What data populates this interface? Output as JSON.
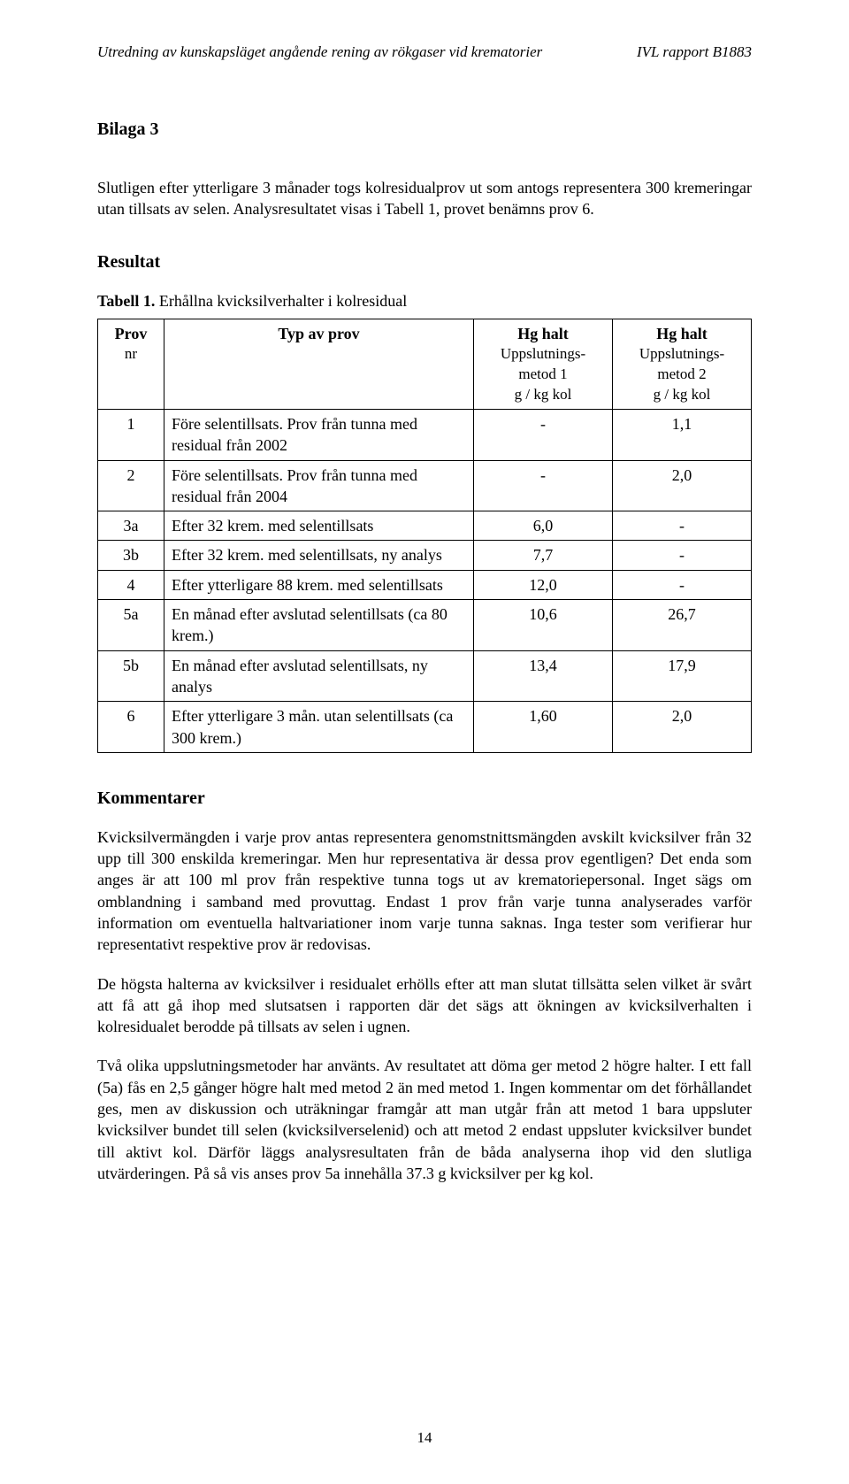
{
  "header": {
    "left": "Utredning av kunskapsläget angående rening av rökgaser vid krematorier",
    "right": "IVL rapport B1883"
  },
  "bilaga": "Bilaga 3",
  "intro": "Slutligen efter ytterligare 3 månader togs kolresidualprov ut som antogs representera 300 kremeringar utan tillsats av selen. Analysresultatet visas i Tabell 1, provet benämns prov 6.",
  "resultat_heading": "Resultat",
  "table_caption_bold": "Tabell 1.",
  "table_caption_rest": " Erhållna kvicksilverhalter i kolresidual",
  "table": {
    "col0": {
      "l1": "Prov",
      "l2": "nr"
    },
    "col1": {
      "l1": "Typ av prov"
    },
    "col2": {
      "l1": "Hg halt",
      "l2": "Uppslutnings-\nmetod 1",
      "l3": "g / kg kol"
    },
    "col3": {
      "l1": "Hg halt",
      "l2": "Uppslutnings-\nmetod 2",
      "l3": "g / kg kol"
    },
    "rows": [
      {
        "nr": "1",
        "typ": "Före selentillsats. Prov från tunna med residual från  2002",
        "v1": "-",
        "v2": "1,1"
      },
      {
        "nr": "2",
        "typ": "Före selentillsats. Prov från tunna med residual från  2004",
        "v1": "-",
        "v2": "2,0"
      },
      {
        "nr": "3a",
        "typ": "Efter 32 krem. med selentillsats",
        "v1": "6,0",
        "v2": "-"
      },
      {
        "nr": "3b",
        "typ": "Efter 32 krem. med selentillsats, ny analys",
        "v1": "7,7",
        "v2": "-"
      },
      {
        "nr": "4",
        "typ": "Efter ytterligare 88 krem. med selentillsats",
        "v1": "12,0",
        "v2": "-"
      },
      {
        "nr": "5a",
        "typ": "En månad efter avslutad selentillsats (ca 80 krem.)",
        "v1": "10,6",
        "v2": "26,7"
      },
      {
        "nr": "5b",
        "typ": "En månad efter avslutad selentillsats, ny analys",
        "v1": "13,4",
        "v2": "17,9"
      },
      {
        "nr": "6",
        "typ": "Efter ytterligare 3 mån. utan selentillsats (ca 300 krem.)",
        "v1": "1,60",
        "v2": "2,0"
      }
    ]
  },
  "kommentarer_heading": "Kommentarer",
  "p1": "Kvicksilvermängden i varje prov antas representera genomstnittsmängden avskilt kvicksilver från 32 upp till 300 enskilda kremeringar. Men hur representativa är dessa prov egentligen? Det enda som anges är att 100 ml prov från respektive tunna togs ut av krematoriepersonal. Inget sägs om omblandning i samband med provuttag. Endast 1 prov från varje tunna analyserades varför information om eventuella haltvariationer inom varje tunna saknas. Inga tester som verifierar hur representativt respektive prov är redovisas.",
  "p2": "De högsta halterna av kvicksilver i residualet erhölls efter att man slutat tillsätta selen vilket är svårt att få att gå ihop med slutsatsen i rapporten där det sägs att ökningen av kvicksilverhalten i kolresidualet berodde på tillsats av selen i ugnen.",
  "p3": "Två olika uppslutningsmetoder har använts. Av resultatet att döma ger metod 2 högre halter. I ett fall (5a) fås en 2,5 gånger högre halt med metod 2 än med metod 1. Ingen kommentar om det förhållandet ges, men av diskussion och uträkningar framgår att man utgår från att metod 1 bara uppsluter kvicksilver bundet till selen (kvicksilverselenid) och att metod 2 endast uppsluter kvicksilver bundet till aktivt kol. Därför läggs analysresultaten från de båda analyserna ihop vid den slutliga utvärderingen. På så vis anses prov 5a innehålla 37.3 g kvicksilver per kg kol.",
  "page_number": "14",
  "style": {
    "text_color": "#000000",
    "background": "#ffffff",
    "border_color": "#000000",
    "body_fontsize_pt": 13,
    "heading_fontsize_pt": 15
  }
}
